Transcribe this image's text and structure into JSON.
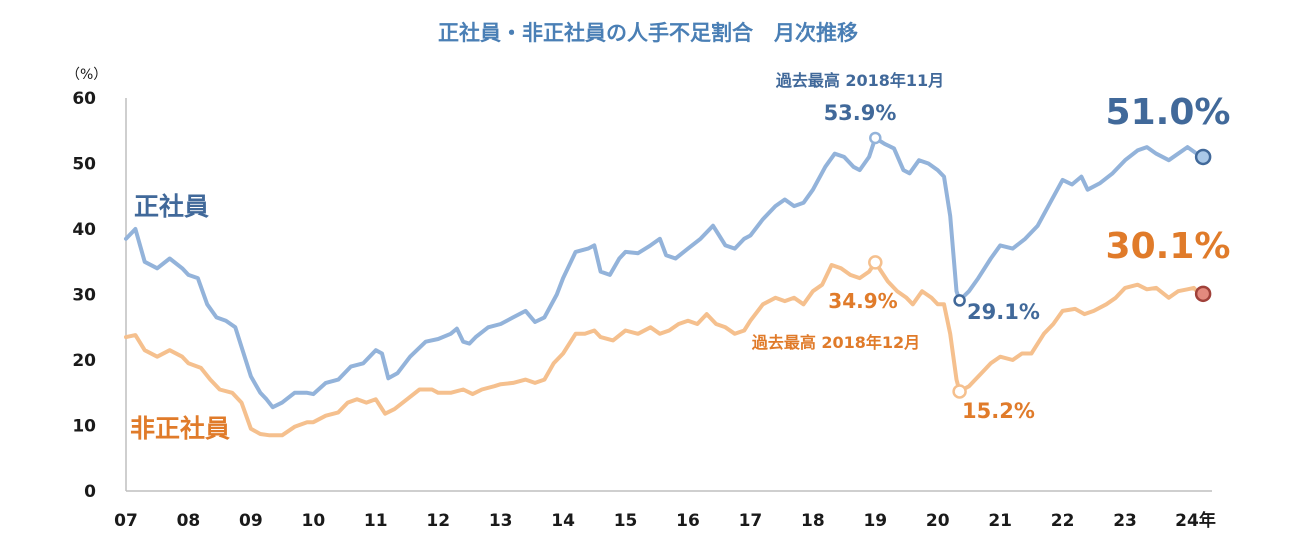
{
  "chart_data": {
    "type": "line",
    "title": "正社員・非正社員の人手不足割合　月次推移",
    "y_unit": "（%）",
    "ylim": [
      0,
      60
    ],
    "yticks": [
      0,
      10,
      20,
      30,
      40,
      50,
      60
    ],
    "xlim": [
      2007.0,
      2024.2
    ],
    "x_tick_values": [
      2007,
      2008,
      2009,
      2010,
      2011,
      2012,
      2013,
      2014,
      2015,
      2016,
      2017,
      2018,
      2019,
      2020,
      2021,
      2022,
      2023,
      2024
    ],
    "x_tick_labels": [
      "07",
      "08",
      "09",
      "10",
      "11",
      "12",
      "13",
      "14",
      "15",
      "16",
      "17",
      "18",
      "19",
      "20",
      "21",
      "22",
      "23",
      "24年"
    ],
    "colors": {
      "regular": "#93b3da",
      "nonregular": "#f5c08e",
      "regular_text": "#41699a",
      "nonregular_text": "#e07b2a",
      "end_regular_marker": "#a9c8e8",
      "end_nonregular_marker": "#e38a7e"
    },
    "series": [
      {
        "name": "正社員",
        "points": [
          [
            2007.0,
            38.5
          ],
          [
            2007.15,
            40
          ],
          [
            2007.3,
            35
          ],
          [
            2007.5,
            34
          ],
          [
            2007.7,
            35.5
          ],
          [
            2007.9,
            34
          ],
          [
            2008.0,
            33
          ],
          [
            2008.15,
            32.5
          ],
          [
            2008.3,
            28.5
          ],
          [
            2008.45,
            26.5
          ],
          [
            2008.6,
            26
          ],
          [
            2008.75,
            25
          ],
          [
            2008.85,
            22
          ],
          [
            2009.0,
            17.5
          ],
          [
            2009.15,
            15
          ],
          [
            2009.25,
            14
          ],
          [
            2009.35,
            12.8
          ],
          [
            2009.5,
            13.5
          ],
          [
            2009.7,
            15
          ],
          [
            2009.9,
            15
          ],
          [
            2010.0,
            14.8
          ],
          [
            2010.2,
            16.5
          ],
          [
            2010.4,
            17
          ],
          [
            2010.6,
            19
          ],
          [
            2010.8,
            19.5
          ],
          [
            2011.0,
            21.5
          ],
          [
            2011.1,
            21
          ],
          [
            2011.2,
            17.2
          ],
          [
            2011.35,
            18
          ],
          [
            2011.55,
            20.5
          ],
          [
            2011.8,
            22.8
          ],
          [
            2012.0,
            23.2
          ],
          [
            2012.2,
            24
          ],
          [
            2012.3,
            24.8
          ],
          [
            2012.4,
            22.8
          ],
          [
            2012.5,
            22.5
          ],
          [
            2012.6,
            23.5
          ],
          [
            2012.8,
            25
          ],
          [
            2013.0,
            25.5
          ],
          [
            2013.2,
            26.5
          ],
          [
            2013.4,
            27.5
          ],
          [
            2013.55,
            25.8
          ],
          [
            2013.7,
            26.5
          ],
          [
            2013.9,
            30
          ],
          [
            2014.0,
            32.5
          ],
          [
            2014.2,
            36.5
          ],
          [
            2014.4,
            37
          ],
          [
            2014.5,
            37.5
          ],
          [
            2014.6,
            33.5
          ],
          [
            2014.75,
            33
          ],
          [
            2014.9,
            35.5
          ],
          [
            2015.0,
            36.5
          ],
          [
            2015.2,
            36.3
          ],
          [
            2015.4,
            37.5
          ],
          [
            2015.55,
            38.5
          ],
          [
            2015.65,
            36
          ],
          [
            2015.8,
            35.5
          ],
          [
            2016.0,
            37
          ],
          [
            2016.2,
            38.5
          ],
          [
            2016.4,
            40.5
          ],
          [
            2016.5,
            39
          ],
          [
            2016.6,
            37.5
          ],
          [
            2016.75,
            37
          ],
          [
            2016.9,
            38.5
          ],
          [
            2017.0,
            39
          ],
          [
            2017.2,
            41.5
          ],
          [
            2017.4,
            43.5
          ],
          [
            2017.55,
            44.5
          ],
          [
            2017.7,
            43.5
          ],
          [
            2017.85,
            44
          ],
          [
            2018.0,
            46
          ],
          [
            2018.2,
            49.5
          ],
          [
            2018.35,
            51.5
          ],
          [
            2018.5,
            51
          ],
          [
            2018.65,
            49.5
          ],
          [
            2018.75,
            49
          ],
          [
            2018.9,
            51
          ],
          [
            2019.0,
            53.9
          ],
          [
            2019.15,
            53
          ],
          [
            2019.3,
            52.3
          ],
          [
            2019.45,
            49
          ],
          [
            2019.55,
            48.5
          ],
          [
            2019.7,
            50.5
          ],
          [
            2019.85,
            50
          ],
          [
            2020.0,
            49
          ],
          [
            2020.1,
            48
          ],
          [
            2020.2,
            42
          ],
          [
            2020.3,
            30.5
          ],
          [
            2020.35,
            29.1
          ],
          [
            2020.5,
            30.5
          ],
          [
            2020.65,
            32.5
          ],
          [
            2020.85,
            35.5
          ],
          [
            2021.0,
            37.5
          ],
          [
            2021.2,
            37
          ],
          [
            2021.4,
            38.5
          ],
          [
            2021.6,
            40.5
          ],
          [
            2021.8,
            44
          ],
          [
            2022.0,
            47.5
          ],
          [
            2022.15,
            46.8
          ],
          [
            2022.3,
            48
          ],
          [
            2022.4,
            46
          ],
          [
            2022.6,
            47
          ],
          [
            2022.8,
            48.5
          ],
          [
            2023.0,
            50.5
          ],
          [
            2023.2,
            52
          ],
          [
            2023.35,
            52.5
          ],
          [
            2023.5,
            51.5
          ],
          [
            2023.7,
            50.5
          ],
          [
            2023.85,
            51.5
          ],
          [
            2024.0,
            52.5
          ],
          [
            2024.15,
            51.5
          ],
          [
            2024.25,
            51.0
          ]
        ]
      },
      {
        "name": "非正社員",
        "points": [
          [
            2007.0,
            23.5
          ],
          [
            2007.15,
            23.8
          ],
          [
            2007.3,
            21.5
          ],
          [
            2007.5,
            20.5
          ],
          [
            2007.7,
            21.5
          ],
          [
            2007.9,
            20.5
          ],
          [
            2008.0,
            19.5
          ],
          [
            2008.2,
            18.8
          ],
          [
            2008.35,
            17
          ],
          [
            2008.5,
            15.5
          ],
          [
            2008.7,
            15
          ],
          [
            2008.85,
            13.5
          ],
          [
            2009.0,
            9.5
          ],
          [
            2009.15,
            8.7
          ],
          [
            2009.3,
            8.5
          ],
          [
            2009.5,
            8.5
          ],
          [
            2009.7,
            9.8
          ],
          [
            2009.9,
            10.5
          ],
          [
            2010.0,
            10.5
          ],
          [
            2010.2,
            11.5
          ],
          [
            2010.4,
            12
          ],
          [
            2010.55,
            13.5
          ],
          [
            2010.7,
            14
          ],
          [
            2010.85,
            13.5
          ],
          [
            2011.0,
            14
          ],
          [
            2011.15,
            11.8
          ],
          [
            2011.3,
            12.5
          ],
          [
            2011.5,
            14
          ],
          [
            2011.7,
            15.5
          ],
          [
            2011.9,
            15.5
          ],
          [
            2012.0,
            15
          ],
          [
            2012.2,
            15
          ],
          [
            2012.4,
            15.5
          ],
          [
            2012.55,
            14.8
          ],
          [
            2012.7,
            15.5
          ],
          [
            2012.9,
            16
          ],
          [
            2013.0,
            16.3
          ],
          [
            2013.2,
            16.5
          ],
          [
            2013.4,
            17
          ],
          [
            2013.55,
            16.5
          ],
          [
            2013.7,
            17
          ],
          [
            2013.85,
            19.5
          ],
          [
            2014.0,
            21
          ],
          [
            2014.2,
            24
          ],
          [
            2014.35,
            24
          ],
          [
            2014.5,
            24.5
          ],
          [
            2014.6,
            23.5
          ],
          [
            2014.8,
            23
          ],
          [
            2015.0,
            24.5
          ],
          [
            2015.2,
            24
          ],
          [
            2015.4,
            25
          ],
          [
            2015.55,
            24
          ],
          [
            2015.7,
            24.5
          ],
          [
            2015.85,
            25.5
          ],
          [
            2016.0,
            26
          ],
          [
            2016.15,
            25.5
          ],
          [
            2016.3,
            27
          ],
          [
            2016.45,
            25.5
          ],
          [
            2016.6,
            25
          ],
          [
            2016.75,
            24
          ],
          [
            2016.9,
            24.5
          ],
          [
            2017.0,
            26
          ],
          [
            2017.2,
            28.5
          ],
          [
            2017.4,
            29.5
          ],
          [
            2017.55,
            29
          ],
          [
            2017.7,
            29.5
          ],
          [
            2017.85,
            28.5
          ],
          [
            2018.0,
            30.5
          ],
          [
            2018.15,
            31.5
          ],
          [
            2018.3,
            34.5
          ],
          [
            2018.45,
            34
          ],
          [
            2018.6,
            33
          ],
          [
            2018.75,
            32.5
          ],
          [
            2018.9,
            33.5
          ],
          [
            2019.0,
            34.9
          ],
          [
            2019.2,
            32
          ],
          [
            2019.35,
            30.5
          ],
          [
            2019.5,
            29.5
          ],
          [
            2019.6,
            28.5
          ],
          [
            2019.75,
            30.5
          ],
          [
            2019.9,
            29.5
          ],
          [
            2020.0,
            28.5
          ],
          [
            2020.1,
            28.5
          ],
          [
            2020.2,
            24
          ],
          [
            2020.3,
            17
          ],
          [
            2020.35,
            15.2
          ],
          [
            2020.5,
            16
          ],
          [
            2020.7,
            18
          ],
          [
            2020.85,
            19.5
          ],
          [
            2021.0,
            20.5
          ],
          [
            2021.2,
            20
          ],
          [
            2021.35,
            21
          ],
          [
            2021.5,
            21
          ],
          [
            2021.7,
            24
          ],
          [
            2021.85,
            25.5
          ],
          [
            2022.0,
            27.5
          ],
          [
            2022.2,
            27.8
          ],
          [
            2022.35,
            27
          ],
          [
            2022.5,
            27.5
          ],
          [
            2022.7,
            28.5
          ],
          [
            2022.85,
            29.5
          ],
          [
            2023.0,
            31
          ],
          [
            2023.2,
            31.5
          ],
          [
            2023.35,
            30.8
          ],
          [
            2023.5,
            31
          ],
          [
            2023.7,
            29.5
          ],
          [
            2023.85,
            30.5
          ],
          [
            2024.0,
            30.8
          ],
          [
            2024.1,
            31
          ],
          [
            2024.2,
            30
          ],
          [
            2024.25,
            30.1
          ]
        ]
      }
    ],
    "labels": {
      "regular_series": "正社員",
      "nonregular_series": "非正社員",
      "regular_record_note": "過去最高 2018年11月",
      "regular_record_value": "53.9%",
      "regular_min_value": "29.1%",
      "regular_latest_value": "51.0%",
      "nonregular_record_note": "過去最高 2018年12月",
      "nonregular_record_value": "34.9%",
      "nonregular_min_value": "15.2%",
      "nonregular_latest_value": "30.1%"
    },
    "highlight_points": {
      "regular_record": [
        2019.0,
        53.9
      ],
      "regular_min": [
        2020.35,
        29.1
      ],
      "regular_latest": [
        2024.25,
        51.0
      ],
      "nonregular_record": [
        2019.0,
        34.9
      ],
      "nonregular_min": [
        2020.35,
        15.2
      ],
      "nonregular_latest": [
        2024.25,
        30.1
      ]
    }
  }
}
